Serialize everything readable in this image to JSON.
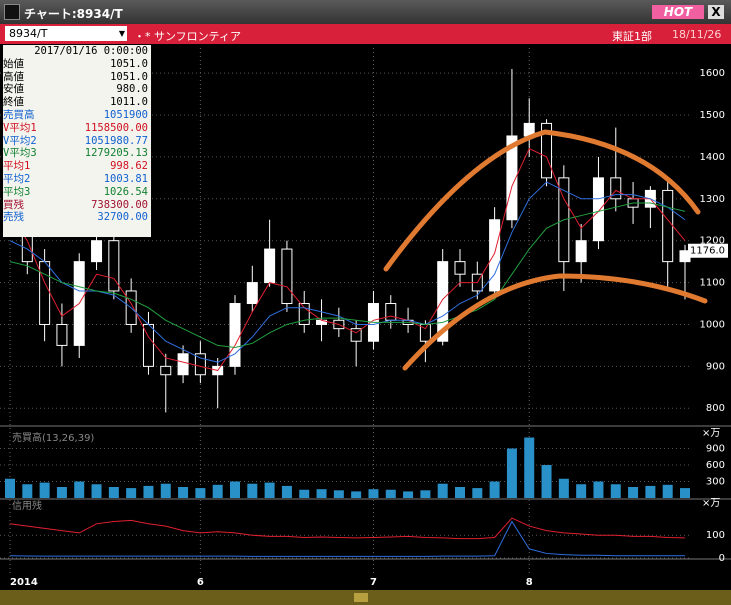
{
  "window": {
    "title": "チャート:8934/T",
    "button": "HOT",
    "close": "X"
  },
  "toolbar": {
    "symbol": "8934/T",
    "name": "・* サンフロンティア",
    "market": "東証1部",
    "date": "18/11/26"
  },
  "info": {
    "date": "2017/01/16 0:00:00",
    "rows": [
      {
        "label": "始値",
        "value": "1051.0",
        "color": "#000000"
      },
      {
        "label": "高値",
        "value": "1051.0",
        "color": "#000000"
      },
      {
        "label": "安値",
        "value": "980.0",
        "color": "#000000"
      },
      {
        "label": "終値",
        "value": "1011.0",
        "color": "#000000"
      },
      {
        "label": "売買高",
        "value": "1051900",
        "color": "#1060d0"
      },
      {
        "label": "V平均1",
        "value": "1158500.00",
        "color": "#d01020"
      },
      {
        "label": "V平均2",
        "value": "1051980.77",
        "color": "#1060d0"
      },
      {
        "label": "V平均3",
        "value": "1279205.13",
        "color": "#108030"
      },
      {
        "label": "平均1",
        "value": "998.62",
        "color": "#d01020"
      },
      {
        "label": "平均2",
        "value": "1003.81",
        "color": "#1060d0"
      },
      {
        "label": "平均3",
        "value": "1026.54",
        "color": "#108030"
      },
      {
        "label": "買残",
        "value": "738300.00",
        "color": "#a01030"
      },
      {
        "label": "売残",
        "value": "32700.00",
        "color": "#1060d0"
      }
    ]
  },
  "chart_data": [
    {
      "type": "candlestick",
      "categories": [
        "2014",
        null,
        null,
        null,
        null,
        null,
        null,
        null,
        null,
        null,
        null,
        "6",
        null,
        null,
        null,
        null,
        null,
        null,
        null,
        null,
        null,
        "7",
        null,
        null,
        null,
        null,
        null,
        null,
        null,
        null,
        "8",
        null,
        null,
        null,
        null,
        null,
        null,
        null,
        null,
        null
      ],
      "open": [
        1300,
        1250,
        1150,
        1000,
        950,
        1150,
        1200,
        1080,
        1000,
        900,
        880,
        930,
        880,
        900,
        1050,
        1100,
        1180,
        1050,
        1000,
        1010,
        990,
        960,
        1050,
        1010,
        1000,
        960,
        1150,
        1120,
        1080,
        1250,
        1450,
        1480,
        1350,
        1150,
        1200,
        1350,
        1300,
        1280,
        1320,
        1150
      ],
      "high": [
        1340,
        1290,
        1180,
        1050,
        1170,
        1230,
        1230,
        1110,
        1030,
        930,
        950,
        960,
        920,
        1070,
        1140,
        1250,
        1200,
        1080,
        1060,
        1040,
        1010,
        1080,
        1070,
        1040,
        1010,
        1180,
        1180,
        1150,
        1280,
        1610,
        1540,
        1490,
        1380,
        1240,
        1400,
        1470,
        1340,
        1330,
        1350,
        1190
      ],
      "low": [
        1220,
        1120,
        960,
        900,
        920,
        1130,
        1060,
        980,
        880,
        790,
        860,
        860,
        800,
        880,
        1030,
        1090,
        1030,
        980,
        960,
        970,
        900,
        940,
        990,
        980,
        910,
        950,
        1090,
        1060,
        1070,
        1230,
        1400,
        1330,
        1080,
        1100,
        1180,
        1270,
        1240,
        1230,
        1080,
        1060
      ],
      "close": [
        1250,
        1150,
        1000,
        950,
        1150,
        1200,
        1080,
        1000,
        900,
        880,
        930,
        880,
        900,
        1050,
        1100,
        1180,
        1050,
        1000,
        1010,
        990,
        960,
        1050,
        1010,
        1000,
        960,
        1150,
        1120,
        1080,
        1250,
        1450,
        1480,
        1350,
        1150,
        1200,
        1350,
        1300,
        1280,
        1320,
        1150,
        1176
      ],
      "series": [
        {
          "color": "#e02030",
          "values": [
            1260,
            1200,
            1100,
            1020,
            1050,
            1120,
            1110,
            1050,
            970,
            920,
            910,
            900,
            890,
            950,
            1030,
            1100,
            1090,
            1040,
            1010,
            1000,
            980,
            1010,
            1020,
            1010,
            990,
            1060,
            1100,
            1100,
            1170,
            1330,
            1420,
            1400,
            1300,
            1230,
            1270,
            1320,
            1300,
            1300,
            1250,
            1200
          ]
        },
        {
          "color": "#3070e0",
          "values": [
            1200,
            1180,
            1150,
            1100,
            1080,
            1080,
            1070,
            1040,
            1000,
            960,
            940,
            920,
            910,
            930,
            970,
            1020,
            1040,
            1040,
            1030,
            1020,
            1000,
            1000,
            1010,
            1010,
            1000,
            1020,
            1050,
            1070,
            1120,
            1220,
            1300,
            1340,
            1320,
            1300,
            1300,
            1310,
            1310,
            1300,
            1280,
            1250
          ]
        },
        {
          "color": "#20a040",
          "values": [
            1150,
            1140,
            1120,
            1100,
            1090,
            1080,
            1075,
            1060,
            1040,
            1010,
            990,
            970,
            950,
            945,
            955,
            980,
            1000,
            1010,
            1015,
            1015,
            1010,
            1005,
            1005,
            1005,
            1000,
            1005,
            1020,
            1035,
            1060,
            1120,
            1180,
            1230,
            1250,
            1260,
            1270,
            1280,
            1290,
            1290,
            1280,
            1270
          ]
        }
      ],
      "price_tag": "1176.0",
      "ylim": [
        760,
        1660
      ],
      "yticks": [
        800,
        900,
        1000,
        1100,
        1200,
        1300,
        1400,
        1500,
        1600
      ],
      "grid": true
    },
    {
      "type": "bar",
      "label": "売買高(13,26,39)",
      "unit": "×万",
      "color": "#2a90c8",
      "values": [
        350,
        250,
        280,
        200,
        300,
        250,
        200,
        180,
        220,
        260,
        200,
        180,
        240,
        300,
        260,
        280,
        220,
        150,
        160,
        140,
        120,
        160,
        150,
        120,
        140,
        260,
        200,
        180,
        300,
        900,
        1100,
        600,
        350,
        250,
        300,
        250,
        200,
        220,
        240,
        180
      ],
      "ylim": [
        0,
        1200
      ],
      "yticks": [
        300,
        600,
        900
      ]
    },
    {
      "type": "line",
      "label": "信用残",
      "unit": "×万",
      "series": [
        {
          "color": "#e02030",
          "values": [
            150,
            140,
            130,
            120,
            110,
            150,
            160,
            165,
            150,
            140,
            120,
            110,
            115,
            110,
            100,
            95,
            95,
            90,
            92,
            90,
            88,
            90,
            92,
            95,
            90,
            88,
            85,
            85,
            90,
            175,
            140,
            120,
            110,
            105,
            100,
            100,
            95,
            95,
            90,
            88
          ]
        },
        {
          "color": "#3070e0",
          "values": [
            10,
            9,
            8,
            8,
            8,
            8,
            8,
            8,
            8,
            8,
            8,
            8,
            8,
            8,
            7,
            7,
            7,
            7,
            7,
            7,
            7,
            7,
            7,
            7,
            7,
            8,
            8,
            8,
            10,
            160,
            40,
            20,
            15,
            12,
            12,
            10,
            10,
            10,
            10,
            10
          ]
        }
      ],
      "ylim": [
        0,
        250
      ],
      "yticks": [
        0,
        100
      ]
    }
  ]
}
